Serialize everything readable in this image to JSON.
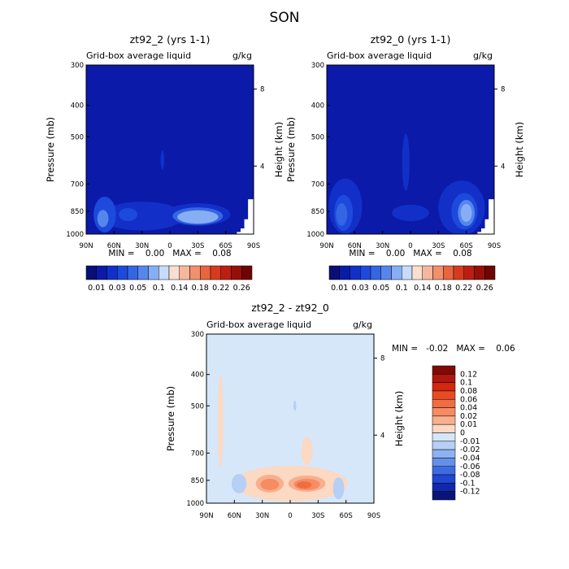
{
  "figure": {
    "title": "SON"
  },
  "panels": [
    {
      "title": "zt92_2 (yrs 1-1)",
      "variable": "Grid-box average liquid",
      "units": "g/kg",
      "y_label": "Pressure (mb)",
      "y2_label": "Height (km)",
      "stats": "MIN =    0.00   MAX =    0.08"
    },
    {
      "title": "zt92_0 (yrs 1-1)",
      "variable": "Grid-box average liquid",
      "units": "g/kg",
      "y_label": "Pressure (mb)",
      "y2_label": "Height (km)",
      "stats": "MIN =    0.00   MAX =    0.08"
    },
    {
      "title": "zt92_2 - zt92_0",
      "variable": "Grid-box average liquid",
      "units": "g/kg",
      "y_label": "Pressure (mb)",
      "y2_label": "Height (km)",
      "stats": "MIN =   -0.02   MAX =    0.06"
    }
  ],
  "chart_data": {
    "type": "heatmap",
    "x_ticks": [
      "90N",
      "60N",
      "30N",
      "0",
      "30S",
      "60S",
      "90S"
    ],
    "x_values": [
      90,
      60,
      30,
      0,
      -30,
      -60,
      -90
    ],
    "y_ticks": [
      "300",
      "400",
      "500",
      "700",
      "850",
      "1000"
    ],
    "y_values": [
      300,
      400,
      500,
      700,
      850,
      1000
    ],
    "y_scale": "log",
    "ylim": [
      300,
      1000
    ],
    "y2_ticks": [
      "8",
      "4"
    ],
    "colorbar_main": {
      "levels": [
        0.01,
        0.02,
        0.03,
        0.04,
        0.05,
        0.07,
        0.1,
        0.12,
        0.14,
        0.16,
        0.18,
        0.2,
        0.22,
        0.24,
        0.26
      ],
      "labels": [
        "0.01",
        "0.03",
        "0.05",
        "0.1",
        "0.14",
        "0.18",
        "0.22",
        "0.26"
      ],
      "colors": [
        "#0a0f75",
        "#0b1aa8",
        "#1230c8",
        "#1d4adc",
        "#3466e4",
        "#5686ec",
        "#87aef4",
        "#c6dcfa",
        "#f9dfcf",
        "#f6b79d",
        "#f0906d",
        "#e7653f",
        "#d83a1f",
        "#bc1e12",
        "#961008",
        "#6e0504"
      ]
    },
    "colorbar_diff": {
      "labels": [
        "0.12",
        "0.1",
        "0.08",
        "0.06",
        "0.04",
        "0.02",
        "0.01",
        "0",
        "-0.01",
        "-0.02",
        "-0.04",
        "-0.06",
        "-0.08",
        "-0.1",
        "-0.12"
      ],
      "colors": [
        "#7f0a06",
        "#b0170d",
        "#d2280f",
        "#e84b24",
        "#f06c41",
        "#f58c62",
        "#f7af8d",
        "#fbd9c3",
        "#d6e7fa",
        "#b5cff5",
        "#8db2f0",
        "#6590e8",
        "#3d6ce2",
        "#1f47d3",
        "#1128ad",
        "#0a1478"
      ]
    },
    "series": [
      {
        "name": "zt92_2 (yrs 1-1)",
        "background_level": 0.01,
        "features": [
          {
            "lat": 8,
            "p": 590,
            "dlat": 2,
            "dp": 40,
            "level": 0.02
          },
          {
            "lat": 30,
            "p": 880,
            "dlat": 45,
            "dp": 90,
            "level": 0.02
          },
          {
            "lat": -30,
            "p": 870,
            "dlat": 35,
            "dp": 70,
            "level": 0.02
          },
          {
            "lat": 70,
            "p": 870,
            "dlat": 12,
            "dp": 110,
            "level": 0.03
          },
          {
            "lat": 45,
            "p": 870,
            "dlat": 10,
            "dp": 40,
            "level": 0.03
          },
          {
            "lat": -30,
            "p": 880,
            "dlat": 27,
            "dp": 55,
            "level": 0.04
          },
          {
            "lat": 72,
            "p": 895,
            "dlat": 6,
            "dp": 55,
            "level": 0.05
          },
          {
            "lat": -30,
            "p": 885,
            "dlat": 22,
            "dp": 42,
            "level": 0.07
          }
        ]
      },
      {
        "name": "zt92_0 (yrs 1-1)",
        "background_level": 0.01,
        "features": [
          {
            "lat": 5,
            "p": 600,
            "dlat": 4,
            "dp": 120,
            "level": 0.02
          },
          {
            "lat": 70,
            "p": 820,
            "dlat": 18,
            "dp": 160,
            "level": 0.02
          },
          {
            "lat": -55,
            "p": 830,
            "dlat": 25,
            "dp": 160,
            "level": 0.02
          },
          {
            "lat": 0,
            "p": 860,
            "dlat": 20,
            "dp": 50,
            "level": 0.02
          },
          {
            "lat": 72,
            "p": 860,
            "dlat": 10,
            "dp": 110,
            "level": 0.03
          },
          {
            "lat": -58,
            "p": 850,
            "dlat": 14,
            "dp": 110,
            "level": 0.03
          },
          {
            "lat": 74,
            "p": 870,
            "dlat": 6,
            "dp": 70,
            "level": 0.04
          },
          {
            "lat": -60,
            "p": 860,
            "dlat": 9,
            "dp": 80,
            "level": 0.05
          },
          {
            "lat": -60,
            "p": 860,
            "dlat": 6,
            "dp": 55,
            "level": 0.07
          }
        ]
      },
      {
        "name": "zt92_2 - zt92_0",
        "background_level": -0.005,
        "features": [
          {
            "lat": 75,
            "p": 560,
            "dlat": 3,
            "dp": 180,
            "level": 0.005
          },
          {
            "lat": -18,
            "p": 690,
            "dlat": 6,
            "dp": 70,
            "level": 0.005
          },
          {
            "lat": 0,
            "p": 870,
            "dlat": 62,
            "dp": 110,
            "level": 0.005
          },
          {
            "lat": 22,
            "p": 870,
            "dlat": 15,
            "dp": 55,
            "level": 0.015
          },
          {
            "lat": -18,
            "p": 870,
            "dlat": 20,
            "dp": 50,
            "level": 0.015
          },
          {
            "lat": 22,
            "p": 875,
            "dlat": 10,
            "dp": 35,
            "level": 0.03
          },
          {
            "lat": -18,
            "p": 875,
            "dlat": 14,
            "dp": 35,
            "level": 0.03
          },
          {
            "lat": -15,
            "p": 878,
            "dlat": 8,
            "dp": 22,
            "level": 0.05
          },
          {
            "lat": 55,
            "p": 870,
            "dlat": 8,
            "dp": 60,
            "level": -0.015
          },
          {
            "lat": -52,
            "p": 900,
            "dlat": 6,
            "dp": 70,
            "level": -0.015
          },
          {
            "lat": -5,
            "p": 500,
            "dlat": 1.5,
            "dp": 18,
            "level": -0.015
          }
        ]
      }
    ]
  }
}
